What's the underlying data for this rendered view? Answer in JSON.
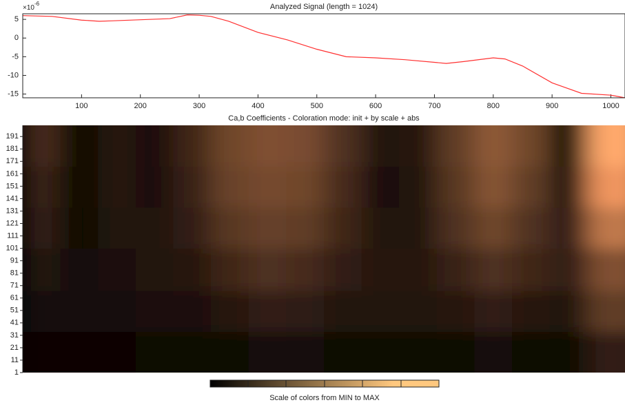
{
  "chart_data": [
    {
      "type": "line",
      "title": "Analyzed Signal (length = 1024)",
      "y_multiplier_base": "×10",
      "y_multiplier_exp": "-6",
      "xlim": [
        0,
        1024
      ],
      "ylim": [
        -16,
        6.5
      ],
      "xticks": [
        100,
        200,
        300,
        400,
        500,
        600,
        700,
        800,
        900,
        1000
      ],
      "yticks": [
        5,
        0,
        -5,
        -10,
        -15
      ],
      "series": [
        {
          "color": "#ff3030",
          "x": [
            0,
            50,
            100,
            130,
            150,
            200,
            250,
            280,
            300,
            320,
            350,
            400,
            450,
            500,
            550,
            600,
            650,
            700,
            720,
            750,
            800,
            820,
            850,
            900,
            950,
            1000,
            1024
          ],
          "values": [
            6,
            5.8,
            4.8,
            4.5,
            4.6,
            4.9,
            5.2,
            6.2,
            6.1,
            5.8,
            4.5,
            1.5,
            -0.5,
            -3,
            -5,
            -5.3,
            -5.8,
            -6.5,
            -6.8,
            -6.3,
            -5.3,
            -5.6,
            -7.5,
            -12,
            -14.8,
            -15.3,
            -16
          ]
        }
      ]
    },
    {
      "type": "heatmap",
      "title": "Ca,b Coefficients - Coloration mode: init + by scale + abs",
      "colormap": "copper",
      "colorbar_label": "Scale of colors from MIN to MAX",
      "xlim": [
        0,
        1024
      ],
      "ylim": [
        1,
        200
      ],
      "yticks": [
        1,
        11,
        21,
        31,
        41,
        51,
        61,
        71,
        81,
        91,
        101,
        111,
        121,
        131,
        141,
        151,
        161,
        171,
        181,
        191
      ],
      "x_bins": [
        0,
        64,
        128,
        192,
        256,
        320,
        384,
        448,
        512,
        576,
        640,
        704,
        768,
        832,
        896,
        960,
        1024
      ],
      "scale_bins": [
        1,
        34,
        67,
        101,
        134,
        167,
        200
      ],
      "z": [
        [
          0.03,
          0.03,
          0.03,
          0.04,
          0.04,
          0.05,
          0.06,
          0.06,
          0.05,
          0.05,
          0.05,
          0.05,
          0.06,
          0.05,
          0.05,
          0.15
        ],
        [
          0.06,
          0.06,
          0.06,
          0.08,
          0.08,
          0.12,
          0.15,
          0.14,
          0.1,
          0.1,
          0.1,
          0.12,
          0.15,
          0.12,
          0.1,
          0.3
        ],
        [
          0.1,
          0.06,
          0.08,
          0.1,
          0.12,
          0.2,
          0.25,
          0.22,
          0.15,
          0.12,
          0.12,
          0.18,
          0.25,
          0.2,
          0.15,
          0.4
        ],
        [
          0.15,
          0.05,
          0.1,
          0.1,
          0.15,
          0.28,
          0.32,
          0.3,
          0.2,
          0.1,
          0.1,
          0.25,
          0.35,
          0.25,
          0.15,
          0.6
        ],
        [
          0.18,
          0.05,
          0.12,
          0.08,
          0.18,
          0.33,
          0.37,
          0.35,
          0.22,
          0.08,
          0.1,
          0.28,
          0.42,
          0.3,
          0.1,
          0.75
        ],
        [
          0.22,
          0.05,
          0.12,
          0.08,
          0.2,
          0.35,
          0.4,
          0.38,
          0.25,
          0.1,
          0.12,
          0.3,
          0.45,
          0.35,
          0.05,
          0.85
        ]
      ]
    }
  ]
}
